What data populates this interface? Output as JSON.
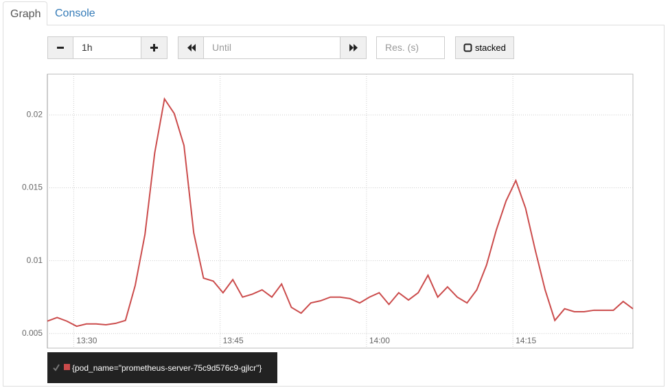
{
  "tabs": [
    "Graph",
    "Console"
  ],
  "controls": {
    "range": "1h",
    "until": "Until",
    "resolution": "Res. (s)",
    "stacked": "stacked"
  },
  "chart_data": {
    "type": "line",
    "x": [
      807.3,
      808.3,
      809.3,
      810.3,
      811.3,
      812.3,
      813.3,
      814.3,
      815.3,
      816.3,
      817.3,
      818.3,
      819.3,
      820.3,
      821.3,
      822.3,
      823.3,
      824.3,
      825.3,
      826.3,
      827.3,
      828.3,
      829.3,
      830.3,
      831.3,
      832.3,
      833.3,
      834.3,
      835.3,
      836.3,
      837.3,
      838.3,
      839.3,
      840.3,
      841.3,
      842.3,
      843.3,
      844.3,
      845.3,
      846.3,
      847.3,
      848.3,
      849.3,
      850.3,
      851.3,
      852.3,
      853.3,
      854.3,
      855.3,
      856.3,
      857.3,
      858.3,
      859.3,
      860.3,
      861.3,
      862.3,
      863.3,
      864.3,
      865.3,
      866.3,
      867.3
    ],
    "xlim": [
      807.3,
      867.3
    ],
    "xticks": [
      {
        "value": 810,
        "label": "13:30"
      },
      {
        "value": 825,
        "label": "13:45"
      },
      {
        "value": 840,
        "label": "14:00"
      },
      {
        "value": 855,
        "label": "14:15"
      }
    ],
    "ylim": [
      0.004,
      0.0228
    ],
    "yticks": [
      0.005,
      0.01,
      0.015,
      0.02
    ],
    "grid": true,
    "series": [
      {
        "name": "{pod_name=\"prometheus-server-75c9d576c9-gjlcr\"}",
        "color": "#cb4b4b",
        "values": [
          0.00585,
          0.0061,
          0.00585,
          0.0055,
          0.00566,
          0.00566,
          0.0056,
          0.0057,
          0.0059,
          0.0083,
          0.0118,
          0.0174,
          0.0211,
          0.0201,
          0.0179,
          0.0119,
          0.0088,
          0.0086,
          0.0078,
          0.0087,
          0.0075,
          0.0077,
          0.008,
          0.0075,
          0.0084,
          0.0068,
          0.0064,
          0.0071,
          0.00725,
          0.0075,
          0.0075,
          0.0074,
          0.0071,
          0.0075,
          0.0078,
          0.007,
          0.0078,
          0.0073,
          0.0078,
          0.009,
          0.0075,
          0.0082,
          0.0075,
          0.0071,
          0.008,
          0.0097,
          0.0121,
          0.0141,
          0.0155,
          0.0136,
          0.0107,
          0.008,
          0.0059,
          0.0067,
          0.0065,
          0.0065,
          0.0066,
          0.0066,
          0.0066,
          0.0072,
          0.0067
        ]
      }
    ]
  }
}
